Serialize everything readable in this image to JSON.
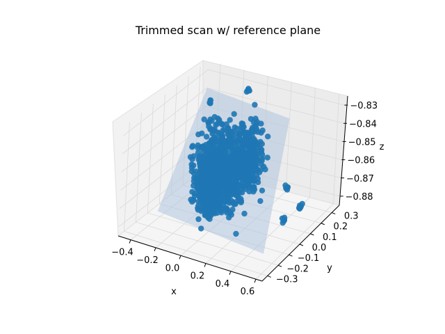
{
  "chart_data": {
    "type": "scatter",
    "title": "Trimmed scan w/ reference plane",
    "xlabel": "x",
    "ylabel": "y",
    "zlabel": "z",
    "projection": "3d",
    "grid": true,
    "legend": "none",
    "xlim": [
      -0.5,
      0.65
    ],
    "ylim": [
      -0.35,
      0.37
    ],
    "zlim": [
      -0.885,
      -0.825
    ],
    "x_ticks": [
      -0.4,
      -0.2,
      0.0,
      0.2,
      0.4,
      0.6
    ],
    "x_tick_labels": [
      "−0.4",
      "−0.2",
      "0.0",
      "0.2",
      "0.4",
      "0.6"
    ],
    "y_ticks": [
      -0.3,
      -0.2,
      -0.1,
      0.0,
      0.1,
      0.2,
      0.3
    ],
    "y_tick_labels": [
      "−0.3",
      "−0.2",
      "−0.1",
      "0.0",
      "0.1",
      "0.2",
      "0.3"
    ],
    "z_ticks": [
      -0.83,
      -0.84,
      -0.85,
      -0.86,
      -0.87,
      -0.88
    ],
    "z_tick_labels": [
      "−0.83",
      "−0.84",
      "−0.85",
      "−0.86",
      "−0.87",
      "−0.88"
    ],
    "colors": {
      "points": "#1f77b4",
      "plane": "#b0c4de",
      "pane_left": "#f2f2f2",
      "pane_right": "#ececec",
      "pane_floor": "#f5f5f5",
      "grid": "#d9d9d9"
    },
    "series": [
      {
        "type": "scatter",
        "description": "dense scan point cloud",
        "clusters": [
          {
            "x": -0.1,
            "y": 0.02,
            "z": -0.858,
            "spread": [
              0.08,
              0.05,
              0.012
            ]
          },
          {
            "x": 0.05,
            "y": 0.0,
            "z": -0.855,
            "spread": [
              0.08,
              0.06,
              0.012
            ]
          },
          {
            "x": 0.0,
            "y": -0.1,
            "z": -0.86,
            "spread": [
              0.06,
              0.05,
              0.01
            ]
          },
          {
            "x": 0.1,
            "y": 0.12,
            "z": -0.855,
            "spread": [
              0.05,
              0.04,
              0.01
            ]
          }
        ],
        "outliers": [
          {
            "x": -0.38,
            "y": 0.28,
            "z": -0.84
          },
          {
            "x": -0.12,
            "y": 0.33,
            "z": -0.832
          },
          {
            "x": 0.42,
            "y": 0.12,
            "z": -0.865
          },
          {
            "x": 0.6,
            "y": 0.05,
            "z": -0.869
          },
          {
            "x": 0.55,
            "y": -0.05,
            "z": -0.871
          }
        ]
      },
      {
        "type": "plane",
        "description": "reference plane",
        "corners": [
          {
            "x": -0.5,
            "y": 0.37,
            "z": -0.84
          },
          {
            "x": 0.2,
            "y": 0.37,
            "z": -0.845
          },
          {
            "x": 0.65,
            "y": -0.35,
            "z": -0.87
          },
          {
            "x": -0.2,
            "y": -0.35,
            "z": -0.865
          }
        ]
      }
    ]
  }
}
